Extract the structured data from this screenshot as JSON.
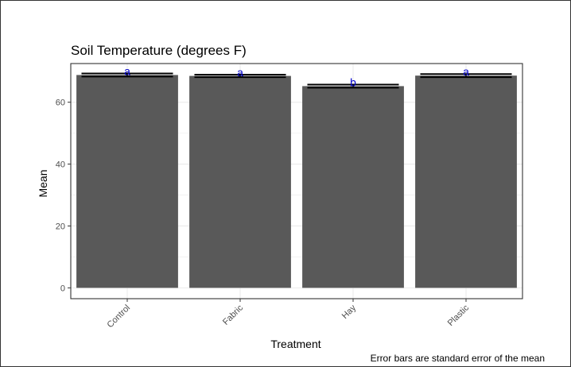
{
  "chart_data": {
    "type": "bar",
    "title": "Soil Temperature (degrees F)",
    "xlabel": "Treatment",
    "ylabel": "Mean",
    "caption": "Error bars are standard error of the mean",
    "categories": [
      "Control",
      "Fabric",
      "Hay",
      "Plastic"
    ],
    "values": [
      68.8,
      68.5,
      65.2,
      68.6
    ],
    "errors": [
      0.5,
      0.4,
      0.5,
      0.5
    ],
    "group_letters": [
      "a",
      "a",
      "b",
      "a"
    ],
    "ylim": [
      -3.5,
      72.5
    ],
    "yticks": [
      0,
      20,
      40,
      60
    ],
    "grid": true,
    "colors": {
      "bar": "#595959",
      "letters": "#0000cc",
      "grid": "#ebebeb",
      "panel_border": "#333333"
    }
  }
}
